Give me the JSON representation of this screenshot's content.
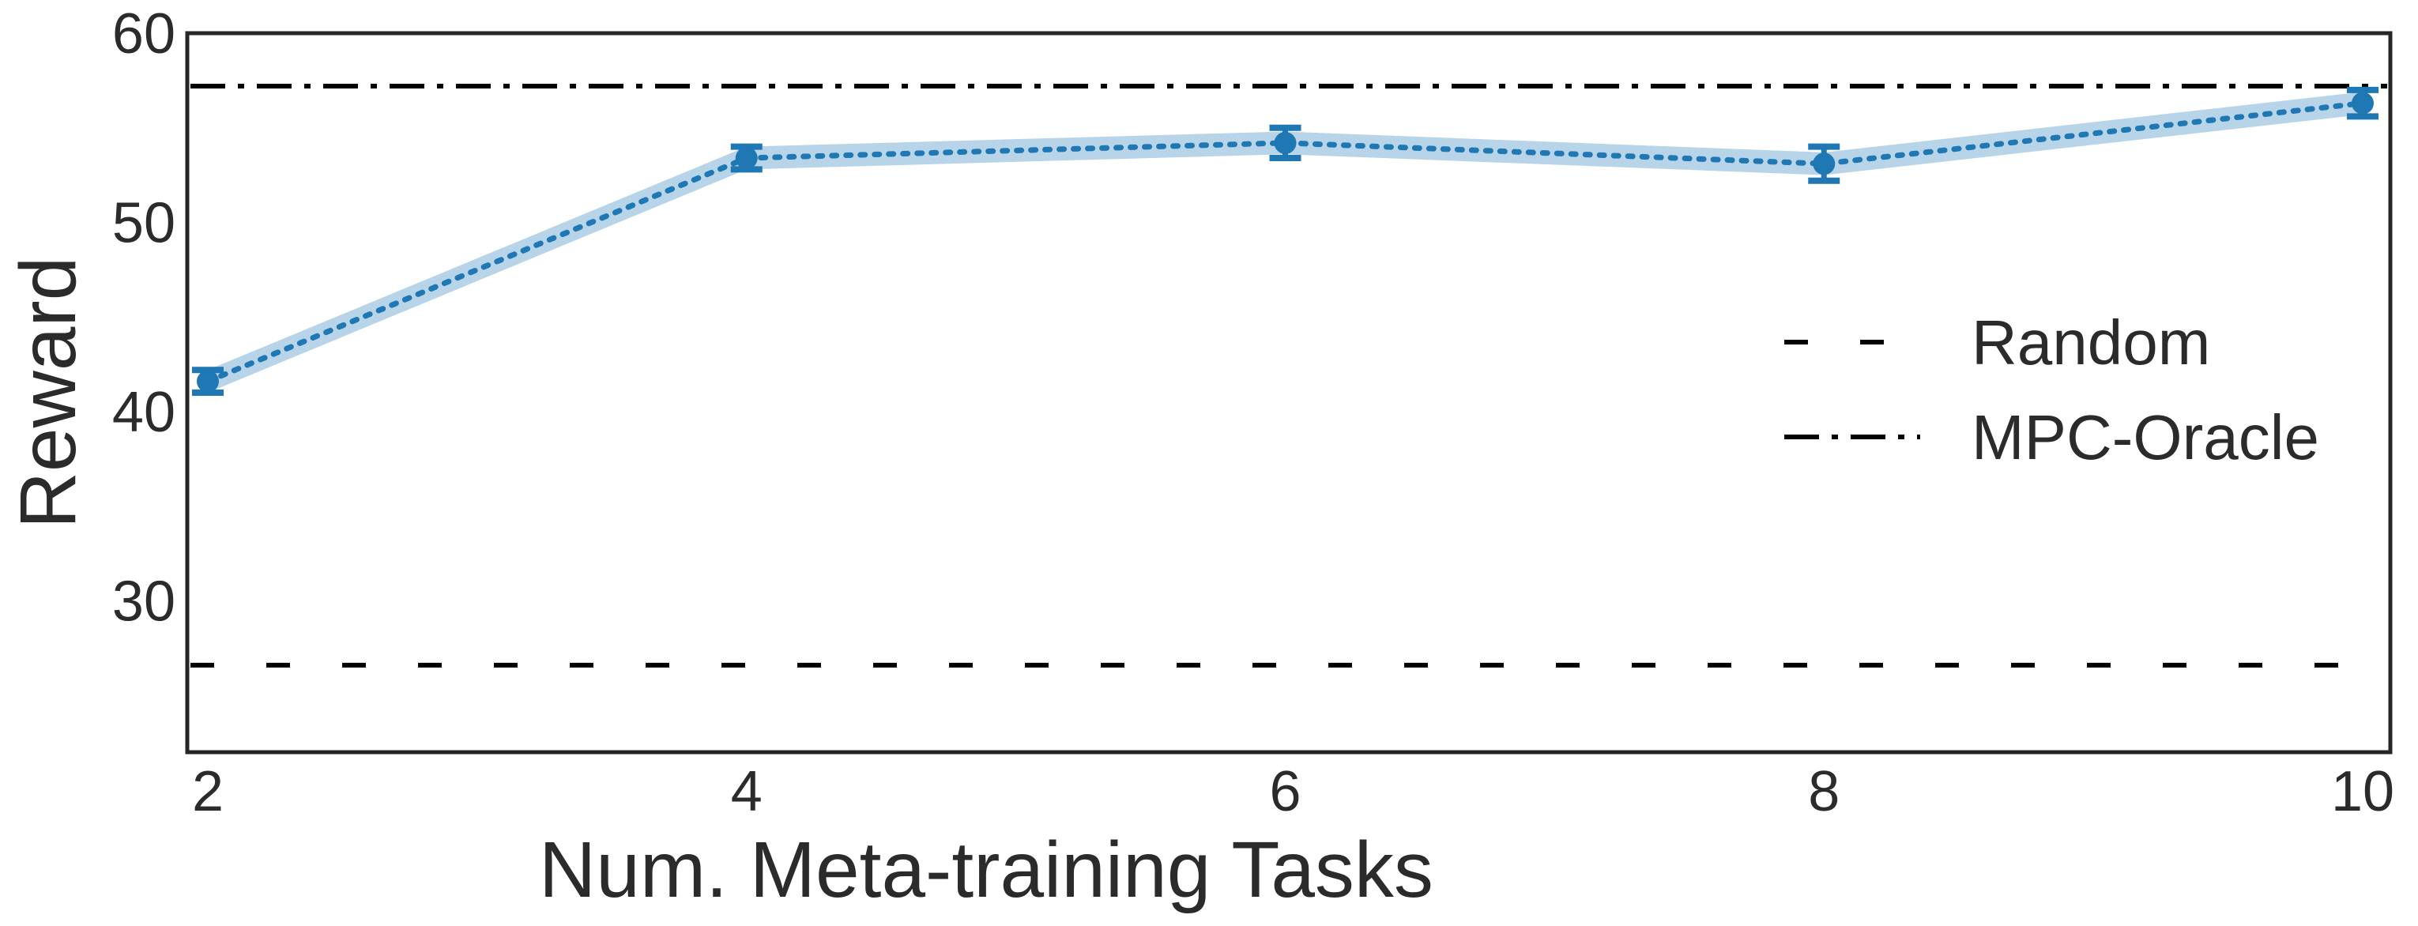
{
  "chart_data": {
    "type": "line",
    "title": "",
    "xlabel": "Num. Meta-training Tasks",
    "ylabel": "Reward",
    "xlim": [
      2,
      10
    ],
    "ylim": [
      22,
      60
    ],
    "x_ticks": [
      2,
      4,
      6,
      8,
      10
    ],
    "y_ticks": [
      30,
      40,
      50,
      60
    ],
    "grid": false,
    "legend_position": "right",
    "series": [
      {
        "x": [
          2,
          4,
          6,
          8,
          10
        ],
        "values": [
          41.6,
          53.4,
          54.2,
          53.1,
          56.3
        ],
        "err": [
          0.6,
          0.6,
          0.8,
          0.9,
          0.7
        ],
        "band_width": 0.6,
        "color": "#1f77b4",
        "band_color": "#b8d4e8",
        "style": "dotted"
      }
    ],
    "reference_lines": [
      {
        "name": "Random",
        "y": 26.6,
        "style": "dashed",
        "color": "#000000"
      },
      {
        "name": "MPC-Oracle",
        "y": 57.2,
        "style": "dashdot",
        "color": "#000000"
      }
    ]
  }
}
